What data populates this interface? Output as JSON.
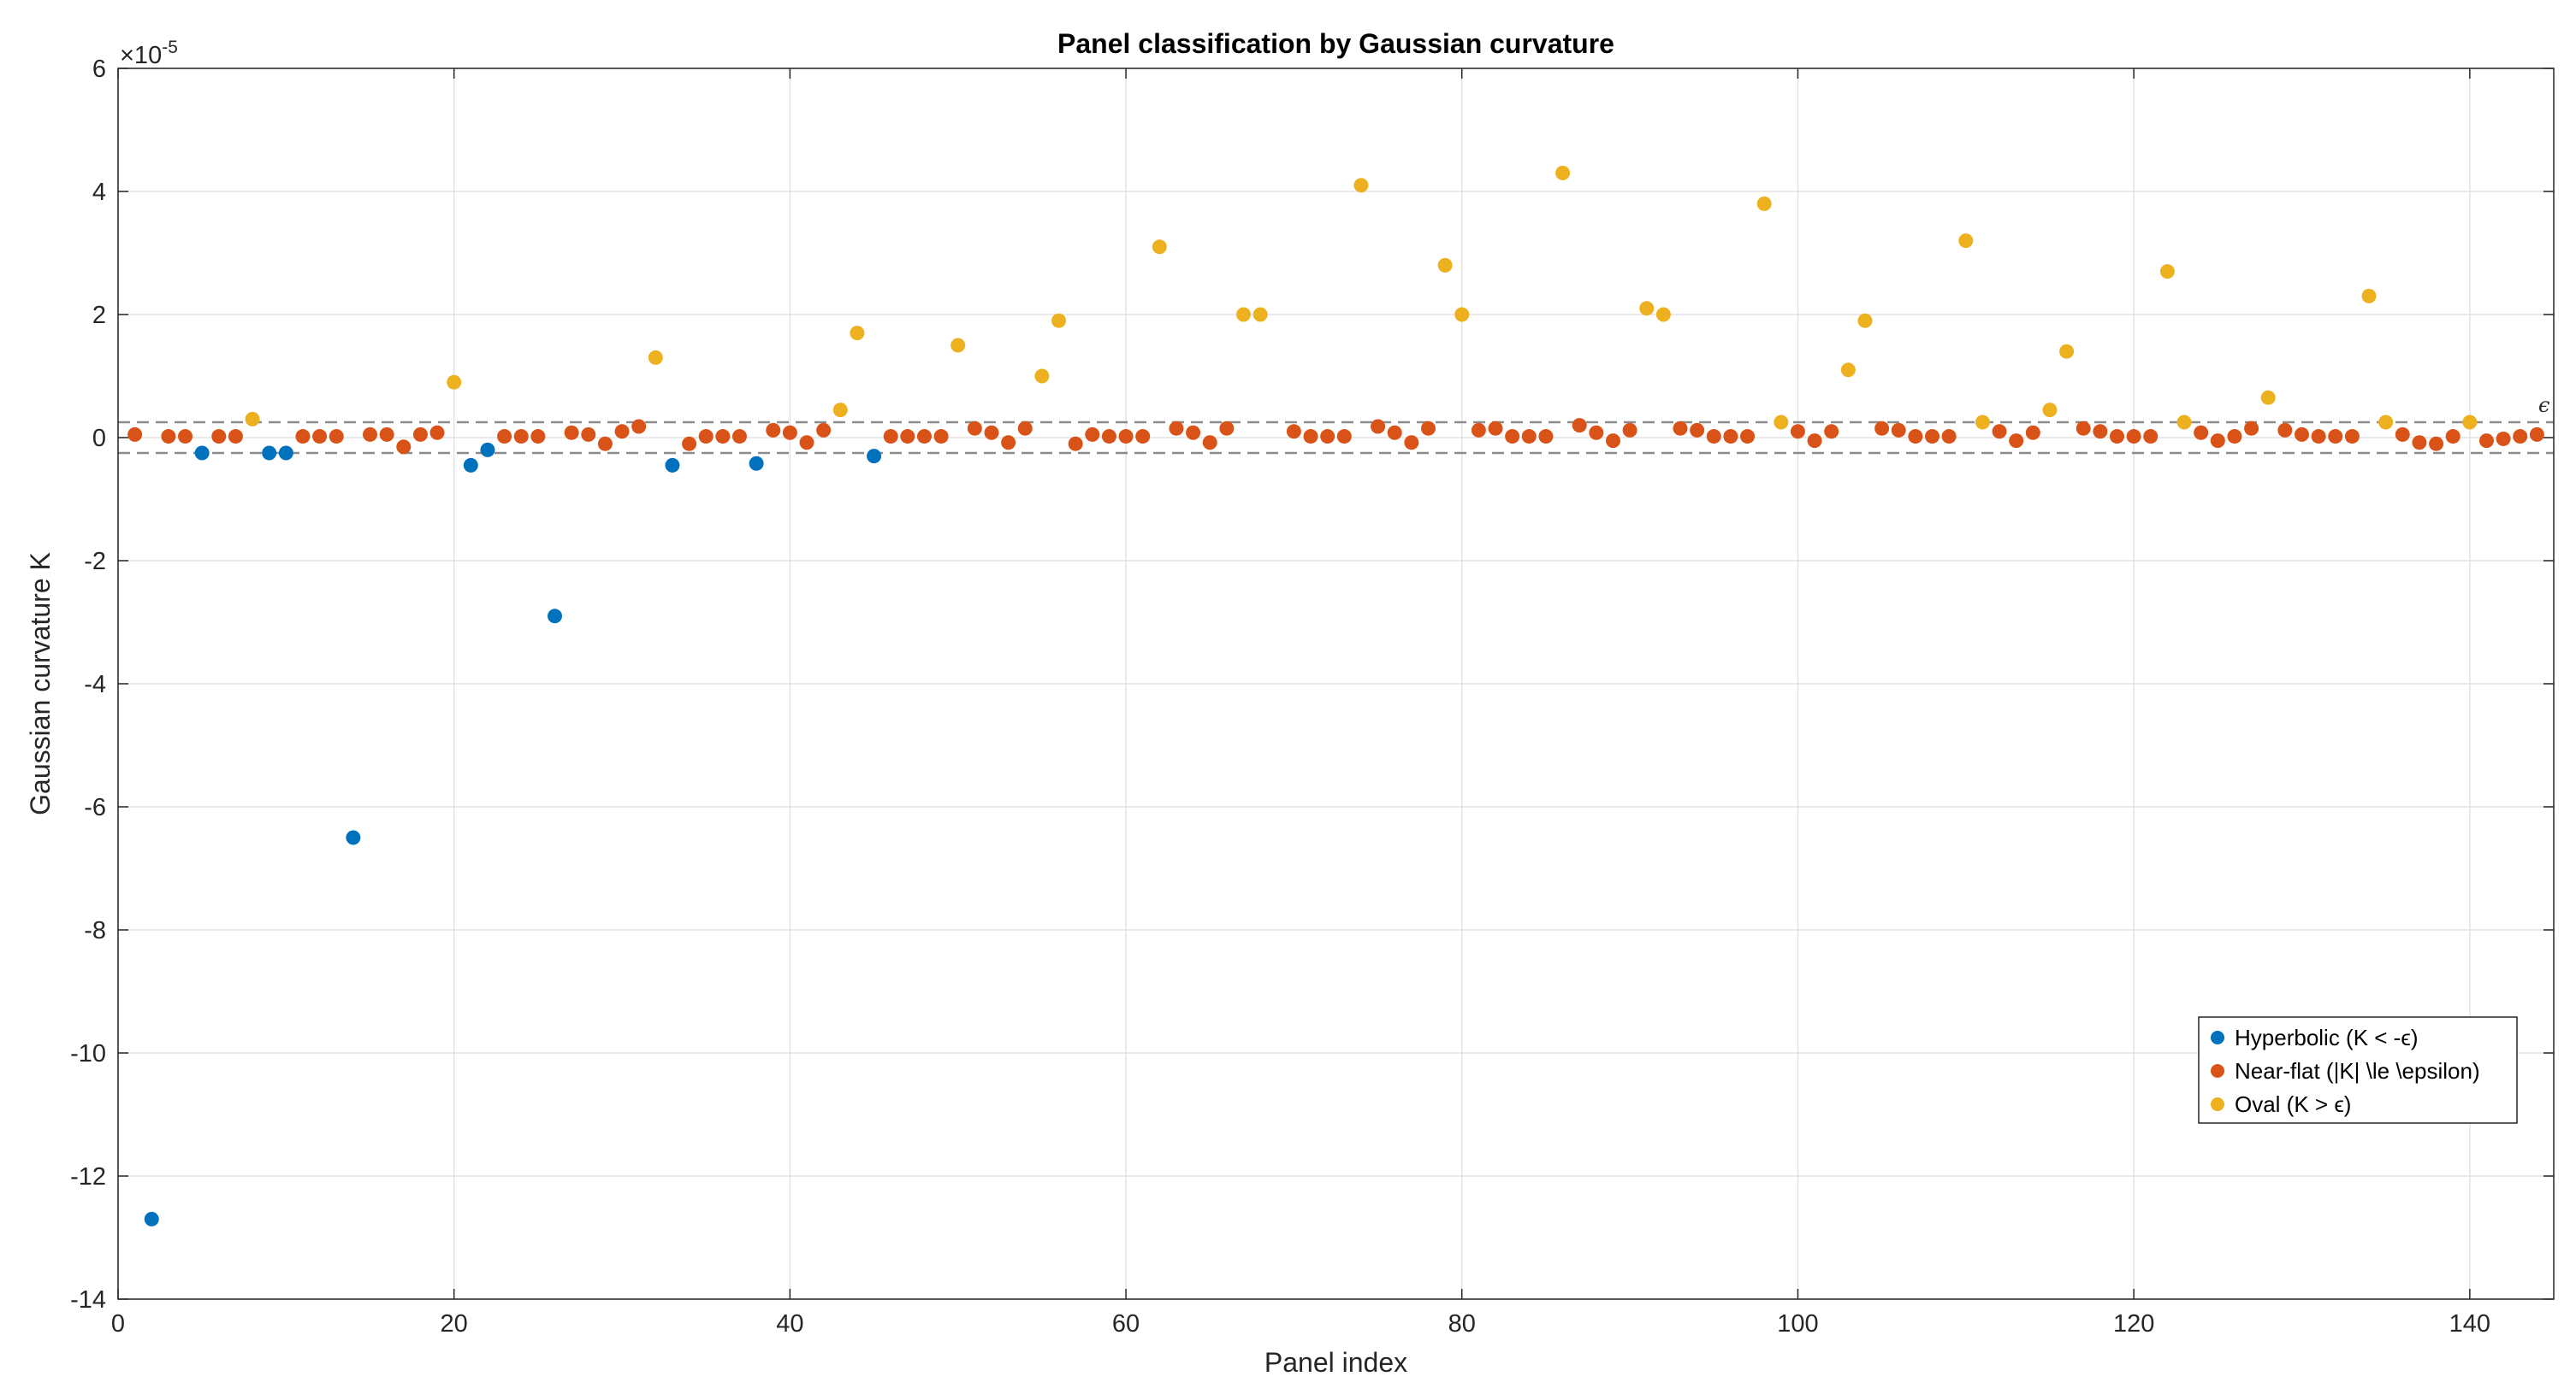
{
  "chart_data": {
    "type": "scatter",
    "title": "Panel classification by Gaussian curvature",
    "xlabel": "Panel index",
    "ylabel": "Gaussian curvature K",
    "xlim": [
      0,
      145
    ],
    "ylim": [
      -14,
      6
    ],
    "x_ticks": [
      0,
      20,
      40,
      60,
      80,
      100,
      120,
      140
    ],
    "y_ticks": [
      -14,
      -12,
      -10,
      -8,
      -6,
      -4,
      -2,
      0,
      2,
      4,
      6
    ],
    "y_exponent_base": "×10",
    "y_exponent_power": "-5",
    "grid": true,
    "legend_position": "bottom-right",
    "threshold": {
      "value": 0.25,
      "label": "ϵ"
    },
    "series": [
      {
        "name": "Hyperbolic (K < -ϵ)",
        "color": "#0072BD",
        "points": [
          [
            2,
            -12.7
          ],
          [
            5,
            -0.25
          ],
          [
            9,
            -0.25
          ],
          [
            10,
            -0.25
          ],
          [
            14,
            -6.5
          ],
          [
            21,
            -0.45
          ],
          [
            22,
            -0.2
          ],
          [
            26,
            -2.9
          ],
          [
            33,
            -0.45
          ],
          [
            38,
            -0.42
          ],
          [
            45,
            -0.3
          ]
        ]
      },
      {
        "name": "Near-flat (|K| \\le \\epsilon)",
        "color": "#D95319",
        "points": [
          [
            1,
            0.05
          ],
          [
            3,
            0.02
          ],
          [
            4,
            0.02
          ],
          [
            6,
            0.02
          ],
          [
            7,
            0.02
          ],
          [
            11,
            0.02
          ],
          [
            12,
            0.02
          ],
          [
            13,
            0.02
          ],
          [
            15,
            0.05
          ],
          [
            16,
            0.05
          ],
          [
            17,
            -0.15
          ],
          [
            18,
            0.05
          ],
          [
            19,
            0.08
          ],
          [
            23,
            0.02
          ],
          [
            24,
            0.02
          ],
          [
            25,
            0.02
          ],
          [
            27,
            0.08
          ],
          [
            28,
            0.05
          ],
          [
            29,
            -0.1
          ],
          [
            30,
            0.1
          ],
          [
            31,
            0.18
          ],
          [
            34,
            -0.1
          ],
          [
            35,
            0.02
          ],
          [
            36,
            0.02
          ],
          [
            37,
            0.02
          ],
          [
            39,
            0.12
          ],
          [
            40,
            0.08
          ],
          [
            41,
            -0.08
          ],
          [
            42,
            0.12
          ],
          [
            46,
            0.02
          ],
          [
            47,
            0.02
          ],
          [
            48,
            0.02
          ],
          [
            49,
            0.02
          ],
          [
            51,
            0.15
          ],
          [
            52,
            0.08
          ],
          [
            53,
            -0.08
          ],
          [
            54,
            0.15
          ],
          [
            57,
            -0.1
          ],
          [
            58,
            0.05
          ],
          [
            59,
            0.02
          ],
          [
            60,
            0.02
          ],
          [
            61,
            0.02
          ],
          [
            63,
            0.15
          ],
          [
            64,
            0.08
          ],
          [
            65,
            -0.08
          ],
          [
            66,
            0.15
          ],
          [
            70,
            0.1
          ],
          [
            71,
            0.02
          ],
          [
            72,
            0.02
          ],
          [
            73,
            0.02
          ],
          [
            75,
            0.18
          ],
          [
            76,
            0.08
          ],
          [
            77,
            -0.08
          ],
          [
            78,
            0.15
          ],
          [
            81,
            0.12
          ],
          [
            82,
            0.15
          ],
          [
            83,
            0.02
          ],
          [
            84,
            0.02
          ],
          [
            85,
            0.02
          ],
          [
            87,
            0.2
          ],
          [
            88,
            0.08
          ],
          [
            89,
            -0.05
          ],
          [
            90,
            0.12
          ],
          [
            93,
            0.15
          ],
          [
            94,
            0.12
          ],
          [
            95,
            0.02
          ],
          [
            96,
            0.02
          ],
          [
            97,
            0.02
          ],
          [
            100,
            0.1
          ],
          [
            101,
            -0.05
          ],
          [
            102,
            0.1
          ],
          [
            105,
            0.15
          ],
          [
            106,
            0.12
          ],
          [
            107,
            0.02
          ],
          [
            108,
            0.02
          ],
          [
            109,
            0.02
          ],
          [
            112,
            0.1
          ],
          [
            113,
            -0.05
          ],
          [
            114,
            0.08
          ],
          [
            117,
            0.15
          ],
          [
            118,
            0.1
          ],
          [
            119,
            0.02
          ],
          [
            120,
            0.02
          ],
          [
            121,
            0.02
          ],
          [
            124,
            0.08
          ],
          [
            125,
            -0.05
          ],
          [
            126,
            0.02
          ],
          [
            127,
            0.15
          ],
          [
            129,
            0.12
          ],
          [
            130,
            0.05
          ],
          [
            131,
            0.02
          ],
          [
            132,
            0.02
          ],
          [
            133,
            0.02
          ],
          [
            136,
            0.05
          ],
          [
            137,
            -0.08
          ],
          [
            138,
            -0.1
          ],
          [
            139,
            0.02
          ],
          [
            141,
            -0.05
          ],
          [
            142,
            -0.02
          ],
          [
            143,
            0.02
          ],
          [
            144,
            0.05
          ]
        ]
      },
      {
        "name": "Oval (K > ϵ)",
        "color": "#EDB120",
        "points": [
          [
            8,
            0.3
          ],
          [
            20,
            0.9
          ],
          [
            32,
            1.3
          ],
          [
            43,
            0.45
          ],
          [
            44,
            1.7
          ],
          [
            50,
            1.5
          ],
          [
            55,
            1.0
          ],
          [
            56,
            1.9
          ],
          [
            62,
            3.1
          ],
          [
            67,
            2.0
          ],
          [
            68,
            2.0
          ],
          [
            74,
            4.1
          ],
          [
            79,
            2.8
          ],
          [
            80,
            2.0
          ],
          [
            86,
            4.3
          ],
          [
            91,
            2.1
          ],
          [
            92,
            2.0
          ],
          [
            98,
            3.8
          ],
          [
            99,
            0.25
          ],
          [
            103,
            1.1
          ],
          [
            104,
            1.9
          ],
          [
            110,
            3.2
          ],
          [
            111,
            0.25
          ],
          [
            115,
            0.45
          ],
          [
            116,
            1.4
          ],
          [
            122,
            2.7
          ],
          [
            123,
            0.25
          ],
          [
            128,
            0.65
          ],
          [
            134,
            2.3
          ],
          [
            135,
            0.25
          ],
          [
            140,
            0.25
          ]
        ]
      }
    ]
  }
}
